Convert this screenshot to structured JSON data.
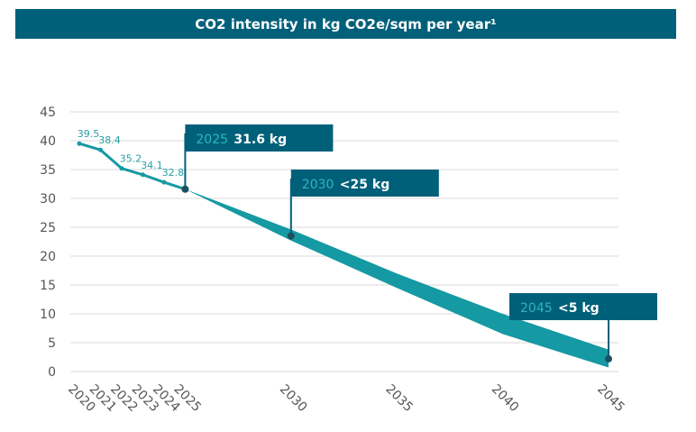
{
  "chart_data": {
    "type": "area",
    "title": "CO2 intensity in kg CO2e/sqm per year¹",
    "xlabel": "",
    "ylabel": "",
    "ylim": [
      0,
      45
    ],
    "xlim": [
      2019.5,
      2045
    ],
    "y_ticks": [
      0,
      5,
      10,
      15,
      20,
      25,
      30,
      35,
      40,
      45
    ],
    "x_ticks": [
      "2020",
      "2021",
      "2022",
      "2023",
      "2024",
      "2025",
      "2030",
      "2035",
      "2040",
      "2045"
    ],
    "grid": true,
    "actual_series": {
      "x": [
        2020,
        2021,
        2022,
        2023,
        2024,
        2025
      ],
      "values": [
        39.5,
        38.4,
        35.2,
        34.1,
        32.8,
        31.6
      ],
      "labels": [
        "39.5",
        "38.4",
        "35.2",
        "34.1",
        "32.8"
      ]
    },
    "target_band": {
      "x": [
        2025,
        2030,
        2035,
        2040,
        2045
      ],
      "upper": [
        31.6,
        24.6,
        17.0,
        10.0,
        3.8
      ],
      "lower": [
        31.6,
        22.7,
        14.5,
        6.5,
        0.7
      ]
    },
    "callouts": [
      {
        "year": "2025",
        "text": "31.6 kg",
        "x": 2025,
        "y": 31.6
      },
      {
        "year": "2030",
        "text": "<25 kg",
        "x": 2030,
        "y": 23.5
      },
      {
        "year": "2045",
        "text": "<5 kg",
        "x": 2045,
        "y": 2.2
      }
    ],
    "colors": {
      "title_bg": "#00607a",
      "callout_bg": "#00607a",
      "line": "#1599a3",
      "band": "#1599a3",
      "marker": "#1f4e5f",
      "grid": "#d9d9d9"
    }
  }
}
